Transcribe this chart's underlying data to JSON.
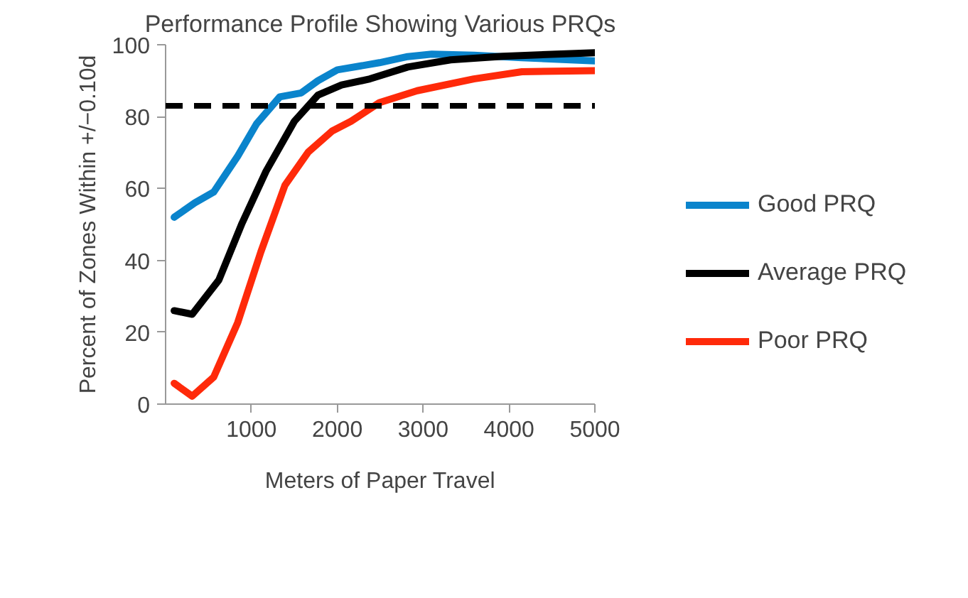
{
  "chart_data": {
    "type": "line",
    "title": "Performance Profile Showing Various PRQs",
    "xlabel": "Meters of Paper Travel",
    "ylabel": "Percent of Zones Within +/−0.10d",
    "xlim": [
      0,
      5000
    ],
    "xticks": [
      1000,
      2000,
      3000,
      4000,
      5000
    ],
    "ylim": [
      0,
      100
    ],
    "yticks": [
      0,
      20,
      40,
      60,
      80,
      100
    ],
    "grid": false,
    "legend": "right",
    "marker": "none",
    "line_style": "solid",
    "ref_lines": [
      {
        "axis": "y",
        "value": 83,
        "label": null,
        "color": "#000000",
        "line_style": "dashed"
      }
    ],
    "series": [
      {
        "name": "Good PRQ",
        "color": "#0a84cc",
        "x": [
          100,
          340,
          560,
          840,
          1060,
          1330,
          1580,
          1775,
          2000,
          2490,
          2820,
          3100,
          3590,
          4150,
          5000
        ],
        "values": [
          52,
          56,
          59,
          69,
          78,
          85.5,
          86.6,
          90,
          93,
          95,
          96.7,
          97.4,
          97.1,
          96.4,
          95.5
        ]
      },
      {
        "name": "Average PRQ",
        "color": "#000000",
        "x": [
          100,
          310,
          620,
          890,
          1170,
          1500,
          1775,
          2050,
          2380,
          2820,
          3320,
          3930,
          5000
        ],
        "values": [
          26,
          25,
          34.5,
          50.3,
          64.8,
          78.7,
          86,
          88.8,
          90.5,
          93.8,
          95.8,
          96.8,
          97.8
        ]
      },
      {
        "name": "Poor PRQ",
        "color": "#ff2a0a",
        "x": [
          100,
          310,
          560,
          840,
          1110,
          1390,
          1660,
          1940,
          2160,
          2490,
          2930,
          3590,
          4150,
          5000
        ],
        "values": [
          5.8,
          2.2,
          7.5,
          22.7,
          42.4,
          60.9,
          70.1,
          76,
          78.7,
          83.9,
          87.2,
          90.5,
          92.5,
          92.8
        ]
      }
    ]
  }
}
